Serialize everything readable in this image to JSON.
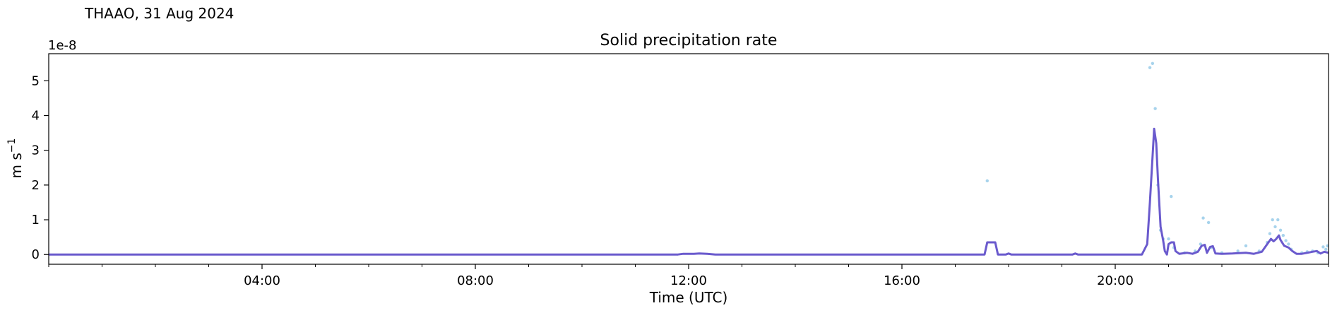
{
  "suptitle": "THAAO, 31 Aug 2024",
  "chart_data": {
    "type": "line",
    "title": "Solid precipitation rate",
    "xlabel": "Time (UTC)",
    "ylabel": "m s",
    "ylabel_superscript": "−1",
    "offset_text": "1e-8",
    "scale": 1e-08,
    "xlim": [
      0,
      24
    ],
    "ylim": [
      -0.28,
      5.78
    ],
    "x_ticks": [
      {
        "x": 4,
        "label": "04:00"
      },
      {
        "x": 8,
        "label": "08:00"
      },
      {
        "x": 12,
        "label": "12:00"
      },
      {
        "x": 16,
        "label": "16:00"
      },
      {
        "x": 20,
        "label": "20:00"
      }
    ],
    "y_ticks": [
      {
        "y": 0,
        "label": "0"
      },
      {
        "y": 1,
        "label": "1"
      },
      {
        "y": 2,
        "label": "2"
      },
      {
        "y": 3,
        "label": "3"
      },
      {
        "y": 4,
        "label": "4"
      },
      {
        "y": 5,
        "label": "5"
      }
    ],
    "grid": false,
    "colors": {
      "line": "#6a5acd",
      "scatter": "#a7d3ec"
    },
    "series": [
      {
        "kind": "scatter",
        "points": [
          [
            17.6,
            2.12
          ],
          [
            20.65,
            5.38
          ],
          [
            20.7,
            5.5
          ],
          [
            20.75,
            4.2
          ],
          [
            20.8,
            2.0
          ],
          [
            20.85,
            0.7
          ],
          [
            20.9,
            0.45
          ],
          [
            21.0,
            0.45
          ],
          [
            21.05,
            1.67
          ],
          [
            21.1,
            0.2
          ],
          [
            21.3,
            0.05
          ],
          [
            21.5,
            0.1
          ],
          [
            21.6,
            0.3
          ],
          [
            21.65,
            1.05
          ],
          [
            21.75,
            0.92
          ],
          [
            21.8,
            0.2
          ],
          [
            22.0,
            0.05
          ],
          [
            22.3,
            0.1
          ],
          [
            22.45,
            0.25
          ],
          [
            22.7,
            0.1
          ],
          [
            22.85,
            0.35
          ],
          [
            22.9,
            0.6
          ],
          [
            22.95,
            1.0
          ],
          [
            23.0,
            0.8
          ],
          [
            23.05,
            1.0
          ],
          [
            23.1,
            0.7
          ],
          [
            23.15,
            0.55
          ],
          [
            23.2,
            0.4
          ],
          [
            23.25,
            0.3
          ],
          [
            23.3,
            0.15
          ],
          [
            23.5,
            0.05
          ],
          [
            23.6,
            0.08
          ],
          [
            23.7,
            0.1
          ],
          [
            23.8,
            0.05
          ],
          [
            23.9,
            0.22
          ],
          [
            23.95,
            0.15
          ],
          [
            23.98,
            0.25
          ]
        ]
      },
      {
        "kind": "line",
        "points": [
          [
            0,
            0
          ],
          [
            11.8,
            0
          ],
          [
            11.9,
            0.02
          ],
          [
            12.0,
            0.02
          ],
          [
            12.1,
            0.02
          ],
          [
            12.2,
            0.03
          ],
          [
            12.35,
            0.02
          ],
          [
            12.5,
            0
          ],
          [
            17.55,
            0
          ],
          [
            17.6,
            0.35
          ],
          [
            17.7,
            0.35
          ],
          [
            17.75,
            0.35
          ],
          [
            17.8,
            0
          ],
          [
            17.95,
            0
          ],
          [
            18.0,
            0.03
          ],
          [
            18.05,
            0
          ],
          [
            19.2,
            0
          ],
          [
            19.25,
            0.03
          ],
          [
            19.3,
            0
          ],
          [
            20.5,
            0
          ],
          [
            20.6,
            0.3
          ],
          [
            20.65,
            1.5
          ],
          [
            20.7,
            2.8
          ],
          [
            20.73,
            3.62
          ],
          [
            20.77,
            3.2
          ],
          [
            20.8,
            2.2
          ],
          [
            20.85,
            0.8
          ],
          [
            20.9,
            0.4
          ],
          [
            20.93,
            0.1
          ],
          [
            20.97,
            0
          ],
          [
            21.0,
            0.3
          ],
          [
            21.05,
            0.35
          ],
          [
            21.1,
            0.35
          ],
          [
            21.13,
            0.1
          ],
          [
            21.2,
            0.02
          ],
          [
            21.35,
            0.05
          ],
          [
            21.45,
            0.02
          ],
          [
            21.55,
            0.08
          ],
          [
            21.62,
            0.25
          ],
          [
            21.68,
            0.28
          ],
          [
            21.72,
            0.05
          ],
          [
            21.78,
            0.22
          ],
          [
            21.83,
            0.24
          ],
          [
            21.88,
            0.03
          ],
          [
            22.0,
            0.02
          ],
          [
            22.2,
            0.03
          ],
          [
            22.45,
            0.05
          ],
          [
            22.6,
            0.02
          ],
          [
            22.75,
            0.08
          ],
          [
            22.85,
            0.3
          ],
          [
            22.92,
            0.45
          ],
          [
            22.97,
            0.38
          ],
          [
            23.02,
            0.45
          ],
          [
            23.07,
            0.55
          ],
          [
            23.1,
            0.42
          ],
          [
            23.17,
            0.25
          ],
          [
            23.25,
            0.2
          ],
          [
            23.32,
            0.1
          ],
          [
            23.4,
            0.02
          ],
          [
            23.5,
            0.02
          ],
          [
            23.6,
            0.05
          ],
          [
            23.7,
            0.08
          ],
          [
            23.78,
            0.1
          ],
          [
            23.85,
            0.03
          ],
          [
            23.92,
            0.08
          ],
          [
            24.0,
            0.05
          ]
        ]
      }
    ]
  }
}
